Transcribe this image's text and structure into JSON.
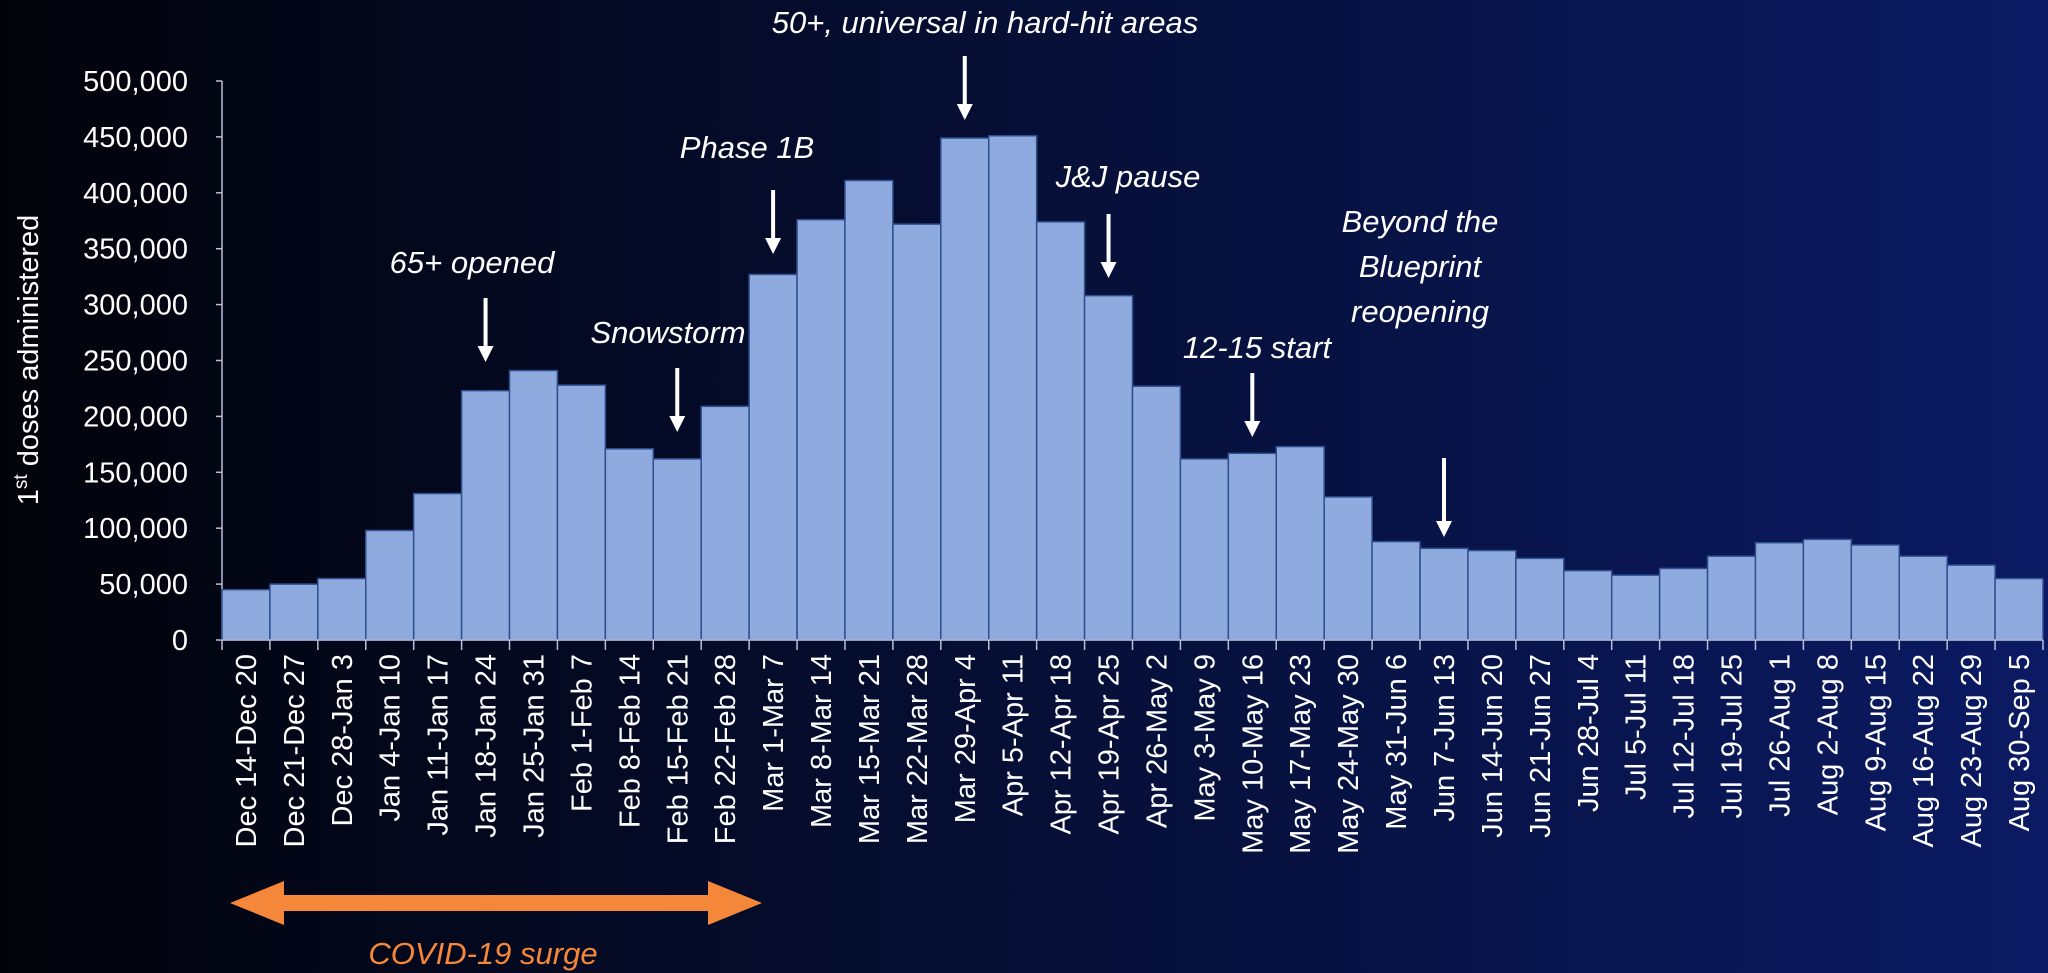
{
  "colors": {
    "bar_fill": "#8faadf",
    "bar_stroke": "#2f4f8f",
    "text": "#ffffff",
    "axis": "#b8c0d8",
    "arrow": "#ffffff",
    "surge": "#f4873a"
  },
  "chart_data": {
    "type": "bar",
    "ylabel": "1st doses administered",
    "ylim": [
      0,
      500000
    ],
    "yticks": [
      {
        "value": 0,
        "label": "0"
      },
      {
        "value": 50000,
        "label": "50,000"
      },
      {
        "value": 100000,
        "label": "100,000"
      },
      {
        "value": 150000,
        "label": "150,000"
      },
      {
        "value": 200000,
        "label": "200,000"
      },
      {
        "value": 250000,
        "label": "250,000"
      },
      {
        "value": 300000,
        "label": "300,000"
      },
      {
        "value": 350000,
        "label": "350,000"
      },
      {
        "value": 400000,
        "label": "400,000"
      },
      {
        "value": 450000,
        "label": "450,000"
      },
      {
        "value": 500000,
        "label": "500,000"
      }
    ],
    "categories": [
      "Dec 14-Dec 20",
      "Dec 21-Dec 27",
      "Dec 28-Jan 3",
      "Jan 4-Jan 10",
      "Jan 11-Jan 17",
      "Jan 18-Jan 24",
      "Jan 25-Jan 31",
      "Feb 1-Feb 7",
      "Feb 8-Feb 14",
      "Feb 15-Feb 21",
      "Feb 22-Feb 28",
      "Mar 1-Mar 7",
      "Mar 8-Mar 14",
      "Mar 15-Mar 21",
      "Mar 22-Mar 28",
      "Mar 29-Apr 4",
      "Apr 5-Apr 11",
      "Apr 12-Apr 18",
      "Apr 19-Apr 25",
      "Apr 26-May 2",
      "May 3-May 9",
      "May 10-May 16",
      "May 17-May 23",
      "May 24-May 30",
      "May 31-Jun 6",
      "Jun 7-Jun 13",
      "Jun 14-Jun 20",
      "Jun 21-Jun 27",
      "Jun 28-Jul 4",
      "Jul 5-Jul 11",
      "Jul 12-Jul 18",
      "Jul 19-Jul 25",
      "Jul 26-Aug 1",
      "Aug 2-Aug 8",
      "Aug 9-Aug 15",
      "Aug 16-Aug 22",
      "Aug 23-Aug 29",
      "Aug 30-Sep 5"
    ],
    "values": [
      45000,
      50000,
      55000,
      98000,
      131000,
      223000,
      241000,
      228000,
      171000,
      162000,
      209000,
      327000,
      376000,
      411000,
      372000,
      449000,
      451000,
      374000,
      308000,
      227000,
      162000,
      167000,
      173000,
      128000,
      88000,
      82000,
      80000,
      73000,
      62000,
      58000,
      64000,
      75000,
      87000,
      90000,
      85000,
      75000,
      67000,
      55000
    ],
    "annotations": [
      {
        "lines": [
          "65+ opened"
        ],
        "index": 5
      },
      {
        "lines": [
          "Snowstorm"
        ],
        "index": 9
      },
      {
        "lines": [
          "Phase 1B"
        ],
        "index": 11
      },
      {
        "lines": [
          "50+, universal in hard-hit areas"
        ],
        "index": 15
      },
      {
        "lines": [
          "J&J pause"
        ],
        "index": 18
      },
      {
        "lines": [
          "12-15 start"
        ],
        "index": 21
      },
      {
        "lines": [
          "Beyond the",
          "Blueprint",
          "reopening"
        ],
        "index": 25
      }
    ],
    "range_annotation": {
      "label": "COVID-19 surge",
      "from_index": 0,
      "to_index": 11
    }
  }
}
